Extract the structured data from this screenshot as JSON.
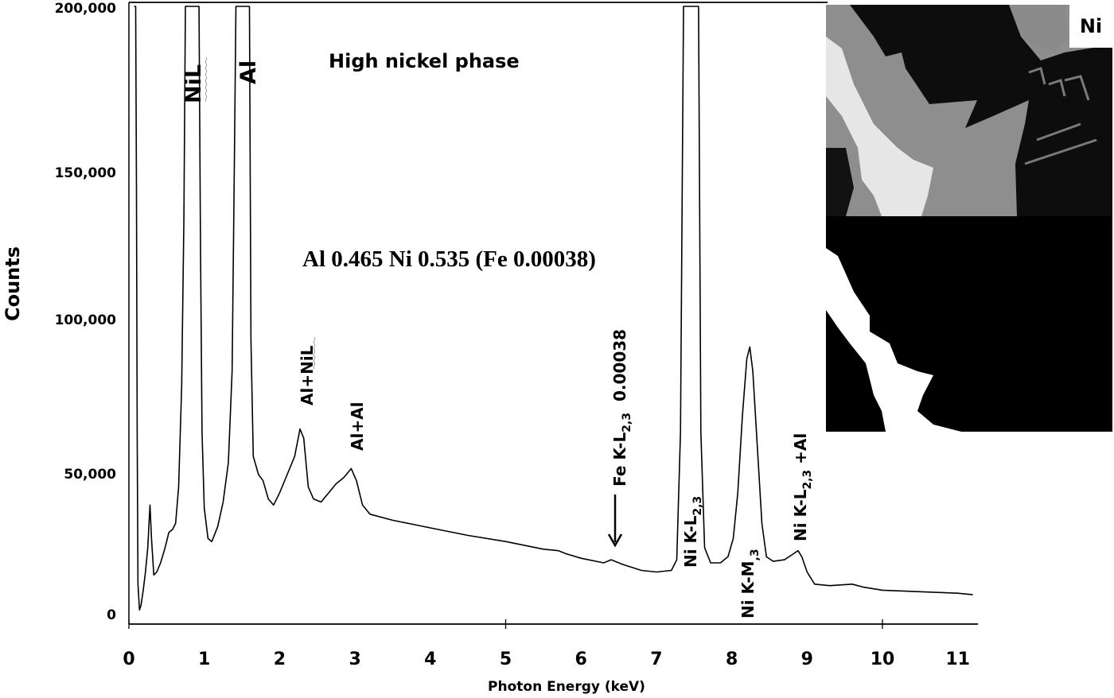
{
  "chart_data": {
    "type": "line",
    "title": "High nickel phase",
    "subtitle": "Al 0.465 Ni 0.535 (Fe 0.00038)",
    "xlabel": "Photon Energy (keV)",
    "ylabel": "Counts",
    "xlim": [
      0,
      11.2
    ],
    "ylim": [
      0,
      200000
    ],
    "grid": false,
    "legend": null,
    "x_ticks": [
      "0",
      "1",
      "2",
      "3",
      "4",
      "5",
      "6",
      "7",
      "8",
      "9",
      "10",
      "11"
    ],
    "y_ticks": [
      "0",
      "50,000",
      "100,000",
      "150,000",
      "200,000"
    ],
    "series": [
      {
        "name": "EDS spectrum",
        "color": "#000000",
        "points": [
          [
            0.07,
            200000
          ],
          [
            0.09,
            200000
          ],
          [
            0.1,
            140000
          ],
          [
            0.11,
            60000
          ],
          [
            0.12,
            10000
          ],
          [
            0.14,
            1500
          ],
          [
            0.16,
            3000
          ],
          [
            0.19,
            8000
          ],
          [
            0.22,
            14000
          ],
          [
            0.25,
            22000
          ],
          [
            0.28,
            36000
          ],
          [
            0.3,
            25000
          ],
          [
            0.33,
            13000
          ],
          [
            0.37,
            14000
          ],
          [
            0.42,
            17000
          ],
          [
            0.48,
            22000
          ],
          [
            0.53,
            27000
          ],
          [
            0.58,
            28000
          ],
          [
            0.62,
            30000
          ],
          [
            0.66,
            42000
          ],
          [
            0.7,
            75000
          ],
          [
            0.73,
            130000
          ],
          [
            0.75,
            200000
          ],
          [
            0.93,
            200000
          ],
          [
            0.95,
            120000
          ],
          [
            0.97,
            60000
          ],
          [
            1.0,
            35000
          ],
          [
            1.05,
            25000
          ],
          [
            1.1,
            24000
          ],
          [
            1.18,
            29000
          ],
          [
            1.25,
            37000
          ],
          [
            1.32,
            50000
          ],
          [
            1.37,
            80000
          ],
          [
            1.4,
            150000
          ],
          [
            1.42,
            200000
          ],
          [
            1.6,
            200000
          ],
          [
            1.62,
            90000
          ],
          [
            1.65,
            52000
          ],
          [
            1.72,
            46000
          ],
          [
            1.78,
            44000
          ],
          [
            1.85,
            38000
          ],
          [
            1.92,
            36000
          ],
          [
            2.0,
            40000
          ],
          [
            2.1,
            46000
          ],
          [
            2.2,
            52000
          ],
          [
            2.27,
            61000
          ],
          [
            2.32,
            58000
          ],
          [
            2.38,
            42000
          ],
          [
            2.45,
            38000
          ],
          [
            2.55,
            37000
          ],
          [
            2.65,
            40000
          ],
          [
            2.75,
            43000
          ],
          [
            2.85,
            45000
          ],
          [
            2.95,
            48000
          ],
          [
            3.02,
            44000
          ],
          [
            3.1,
            36000
          ],
          [
            3.2,
            33000
          ],
          [
            3.5,
            31000
          ],
          [
            4.0,
            28500
          ],
          [
            4.5,
            26000
          ],
          [
            5.0,
            24000
          ],
          [
            5.5,
            21500
          ],
          [
            5.7,
            21000
          ],
          [
            5.8,
            20000
          ],
          [
            6.0,
            18500
          ],
          [
            6.3,
            17000
          ],
          [
            6.4,
            18000
          ],
          [
            6.55,
            16500
          ],
          [
            6.8,
            14500
          ],
          [
            7.0,
            14000
          ],
          [
            7.2,
            14500
          ],
          [
            7.27,
            18000
          ],
          [
            7.32,
            60000
          ],
          [
            7.36,
            200000
          ],
          [
            7.56,
            200000
          ],
          [
            7.59,
            60000
          ],
          [
            7.64,
            22000
          ],
          [
            7.72,
            17000
          ],
          [
            7.85,
            17000
          ],
          [
            7.95,
            19000
          ],
          [
            8.02,
            25000
          ],
          [
            8.08,
            40000
          ],
          [
            8.14,
            65000
          ],
          [
            8.2,
            84000
          ],
          [
            8.24,
            88000
          ],
          [
            8.28,
            80000
          ],
          [
            8.34,
            55000
          ],
          [
            8.4,
            30000
          ],
          [
            8.46,
            19000
          ],
          [
            8.55,
            17500
          ],
          [
            8.7,
            18000
          ],
          [
            8.82,
            20000
          ],
          [
            8.88,
            21000
          ],
          [
            8.93,
            19000
          ],
          [
            9.0,
            14000
          ],
          [
            9.1,
            10000
          ],
          [
            9.3,
            9500
          ],
          [
            9.6,
            10000
          ],
          [
            9.75,
            9000
          ],
          [
            10.0,
            8000
          ],
          [
            10.5,
            7500
          ],
          [
            11.0,
            7000
          ],
          [
            11.2,
            6500
          ]
        ]
      }
    ],
    "annotations": [
      {
        "text": "NiL",
        "x_keV": 0.85,
        "rotated": true
      },
      {
        "text": "Al",
        "x_keV": 1.49,
        "rotated": true
      },
      {
        "text": "Al+NiL",
        "x_keV": 2.3,
        "rotated": true
      },
      {
        "text": "Al+Al",
        "x_keV": 2.97,
        "rotated": true
      },
      {
        "text": "Fe K-L2,3  0.00038",
        "x_keV": 6.4,
        "rotated": true,
        "arrow": "down"
      },
      {
        "text": "Ni K-L2,3",
        "x_keV": 7.47,
        "rotated": true
      },
      {
        "text": "Ni K-M,3",
        "x_keV": 8.26,
        "rotated": true
      },
      {
        "text": "Ni K-L2,3 +Al",
        "x_keV": 8.95,
        "rotated": true
      }
    ]
  },
  "labels": {
    "title": "High nickel phase",
    "composition": "Al 0.465 Ni 0.535 (Fe 0.00038)",
    "xlabel": "Photon Energy (keV)",
    "ylabel": "Counts",
    "peak_nil": "NiL",
    "peak_al": "Al",
    "peak_al_nil": "Al+NiL",
    "peak_al_al": "Al+Al",
    "peak_fe_main": "Fe K-L",
    "peak_fe_sub": "2,3",
    "peak_fe_value": "0.00038",
    "peak_ni_kl_main": "Ni K-L",
    "peak_ni_kl_sub": "2,3",
    "peak_ni_km_main": "Ni K-M",
    "peak_ni_km_sub": ",3",
    "peak_ni_kl_al_main": "Ni K-L",
    "peak_ni_kl_al_sub": "2,3",
    "peak_ni_kl_al_tail": " +Al"
  },
  "inset": {
    "label": "Ni",
    "top_description": "grayscale micrograph",
    "bottom_description": "binary Ni mask"
  }
}
